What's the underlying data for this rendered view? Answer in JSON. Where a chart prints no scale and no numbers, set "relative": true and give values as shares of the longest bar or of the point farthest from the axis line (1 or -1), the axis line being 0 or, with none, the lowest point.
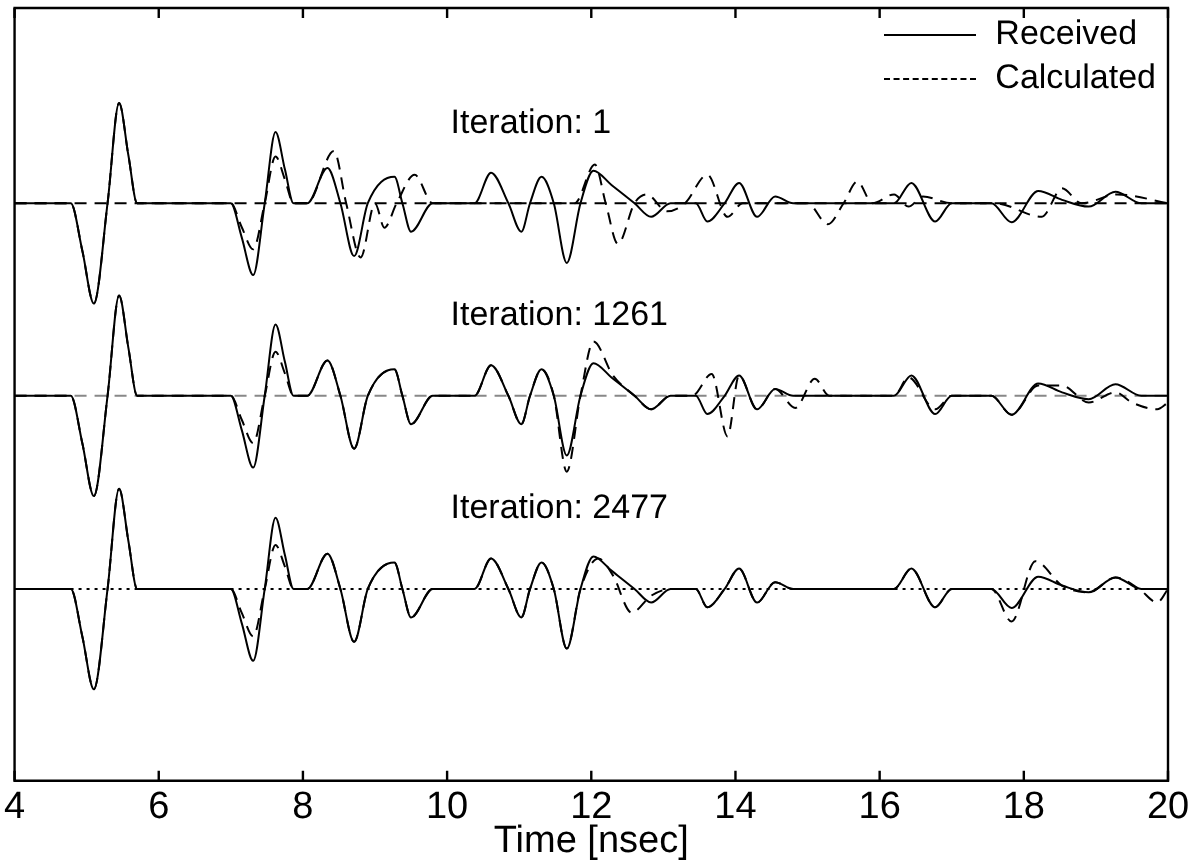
{
  "chart_data": {
    "type": "line",
    "relative": true,
    "xlabel": "Time [nsec]",
    "xlim": [
      4,
      20
    ],
    "xticks": [
      4,
      6,
      8,
      10,
      12,
      14,
      16,
      18,
      20
    ],
    "grid": false,
    "legend": "top right",
    "marker": "none",
    "series": [
      {
        "name": "Received",
        "color": "#000000",
        "line_style": "solid",
        "x": [
          4.0,
          4.78,
          4.94,
          5.1,
          5.29,
          5.45,
          5.58,
          5.7,
          7.0,
          7.15,
          7.31,
          7.47,
          7.62,
          7.75,
          7.87,
          8.06,
          8.34,
          8.52,
          8.71,
          8.9,
          9.27,
          9.38,
          9.5,
          9.8,
          10.38,
          10.61,
          10.85,
          11.03,
          11.15,
          11.31,
          11.48,
          11.66,
          11.85,
          12.03,
          12.28,
          12.6,
          12.83,
          13.1,
          13.45,
          13.61,
          13.85,
          14.05,
          14.3,
          14.55,
          14.8,
          15.3,
          15.7,
          16.2,
          16.44,
          16.77,
          17.0,
          17.55,
          17.83,
          18.2,
          18.53,
          18.9,
          19.27,
          19.63,
          20
        ],
        "values": [
          0.852,
          0.852,
          0.782,
          0.704,
          0.852,
          1.0,
          0.922,
          0.852,
          0.852,
          0.802,
          0.746,
          0.852,
          0.957,
          0.902,
          0.852,
          0.852,
          0.904,
          0.852,
          0.774,
          0.852,
          0.891,
          0.852,
          0.81,
          0.852,
          0.852,
          0.897,
          0.852,
          0.81,
          0.852,
          0.891,
          0.852,
          0.764,
          0.852,
          0.9,
          0.879,
          0.852,
          0.832,
          0.852,
          0.852,
          0.825,
          0.852,
          0.882,
          0.832,
          0.862,
          0.852,
          0.852,
          0.852,
          0.852,
          0.882,
          0.825,
          0.852,
          0.852,
          0.824,
          0.87,
          0.857,
          0.847,
          0.869,
          0.852,
          0.852
        ]
      },
      {
        "name": "Calculated",
        "color": "#000000",
        "line_style": "dashed",
        "x": [
          4.0,
          4.78,
          4.94,
          5.1,
          5.29,
          5.45,
          5.58,
          5.7,
          7.0,
          7.15,
          7.31,
          7.47,
          7.62,
          7.75,
          7.87,
          8.06,
          8.43,
          8.6,
          8.8,
          9.0,
          9.13,
          9.3,
          9.55,
          9.8,
          11.77,
          12.05,
          12.2,
          12.37,
          12.6,
          12.77,
          13.05,
          13.3,
          13.61,
          13.89,
          14.1,
          15.0,
          15.28,
          15.5,
          15.69,
          15.9,
          16.2,
          16.4,
          16.6,
          17.0,
          17.6,
          18.25,
          18.53,
          18.8,
          19.3,
          20
        ],
        "values": [
          0.852,
          0.852,
          0.782,
          0.704,
          0.852,
          1.0,
          0.922,
          0.852,
          0.852,
          0.817,
          0.784,
          0.852,
          0.921,
          0.887,
          0.852,
          0.852,
          0.929,
          0.852,
          0.772,
          0.852,
          0.816,
          0.852,
          0.894,
          0.852,
          0.852,
          0.909,
          0.852,
          0.792,
          0.852,
          0.865,
          0.84,
          0.852,
          0.894,
          0.832,
          0.852,
          0.852,
          0.821,
          0.852,
          0.884,
          0.852,
          0.865,
          0.847,
          0.862,
          0.852,
          0.852,
          0.832,
          0.874,
          0.852,
          0.865,
          0.852
        ]
      },
      {
        "color": "#000000",
        "line_style": "solid",
        "x": [
          4.0,
          4.78,
          4.94,
          5.1,
          5.29,
          5.45,
          5.58,
          5.7,
          7.0,
          7.15,
          7.31,
          7.47,
          7.62,
          7.75,
          7.87,
          8.06,
          8.34,
          8.52,
          8.71,
          8.9,
          9.27,
          9.38,
          9.5,
          9.8,
          10.38,
          10.61,
          10.85,
          11.03,
          11.15,
          11.31,
          11.48,
          11.66,
          11.85,
          12.03,
          12.28,
          12.6,
          12.83,
          13.1,
          13.45,
          13.61,
          13.85,
          14.05,
          14.3,
          14.55,
          14.8,
          15.3,
          15.7,
          16.2,
          16.44,
          16.77,
          17.0,
          17.55,
          17.83,
          18.2,
          18.53,
          18.9,
          19.27,
          19.63,
          20
        ],
        "values": [
          0.568,
          0.568,
          0.498,
          0.42,
          0.568,
          0.716,
          0.638,
          0.568,
          0.568,
          0.518,
          0.462,
          0.568,
          0.673,
          0.618,
          0.568,
          0.568,
          0.62,
          0.568,
          0.49,
          0.568,
          0.607,
          0.568,
          0.526,
          0.568,
          0.568,
          0.613,
          0.568,
          0.526,
          0.568,
          0.607,
          0.568,
          0.48,
          0.568,
          0.616,
          0.595,
          0.568,
          0.548,
          0.568,
          0.568,
          0.541,
          0.568,
          0.598,
          0.548,
          0.578,
          0.568,
          0.568,
          0.568,
          0.568,
          0.598,
          0.541,
          0.568,
          0.568,
          0.54,
          0.586,
          0.573,
          0.563,
          0.585,
          0.568,
          0.568
        ]
      },
      {
        "color": "#000000",
        "line_style": "dashed",
        "x": [
          4.0,
          4.78,
          4.94,
          5.1,
          5.29,
          5.45,
          5.58,
          5.7,
          7.0,
          7.15,
          7.31,
          7.47,
          7.62,
          7.75,
          7.87,
          8.06,
          8.34,
          8.52,
          8.71,
          8.9,
          9.27,
          9.38,
          9.5,
          9.8,
          10.38,
          10.61,
          10.85,
          11.03,
          11.15,
          11.31,
          11.48,
          11.66,
          11.85,
          12.03,
          12.3,
          12.6,
          12.83,
          13.1,
          13.4,
          13.67,
          13.89,
          14.05,
          14.3,
          14.55,
          14.83,
          15.1,
          15.3,
          16.2,
          16.4,
          16.77,
          17.0,
          17.55,
          17.83,
          18.2,
          18.53,
          18.9,
          19.27,
          19.5,
          19.85,
          20
        ],
        "values": [
          0.568,
          0.568,
          0.498,
          0.42,
          0.568,
          0.716,
          0.638,
          0.568,
          0.568,
          0.533,
          0.498,
          0.568,
          0.633,
          0.601,
          0.568,
          0.568,
          0.62,
          0.568,
          0.49,
          0.568,
          0.607,
          0.568,
          0.526,
          0.568,
          0.568,
          0.613,
          0.568,
          0.526,
          0.568,
          0.607,
          0.568,
          0.456,
          0.568,
          0.648,
          0.598,
          0.568,
          0.548,
          0.568,
          0.568,
          0.6,
          0.508,
          0.598,
          0.548,
          0.578,
          0.55,
          0.593,
          0.568,
          0.568,
          0.595,
          0.548,
          0.568,
          0.568,
          0.54,
          0.583,
          0.583,
          0.558,
          0.573,
          0.558,
          0.548,
          0.558
        ]
      },
      {
        "color": "#000000",
        "line_style": "solid",
        "x": [
          4.0,
          4.78,
          4.94,
          5.1,
          5.29,
          5.45,
          5.58,
          5.7,
          7.0,
          7.15,
          7.31,
          7.47,
          7.62,
          7.75,
          7.87,
          8.06,
          8.34,
          8.52,
          8.71,
          8.9,
          9.27,
          9.38,
          9.5,
          9.8,
          10.38,
          10.61,
          10.85,
          11.03,
          11.15,
          11.31,
          11.48,
          11.66,
          11.85,
          12.03,
          12.28,
          12.6,
          12.83,
          13.1,
          13.45,
          13.61,
          13.85,
          14.05,
          14.3,
          14.55,
          14.8,
          15.3,
          15.7,
          16.2,
          16.44,
          16.77,
          17.0,
          17.55,
          17.83,
          18.2,
          18.53,
          18.9,
          19.27,
          19.63,
          20
        ],
        "values": [
          0.283,
          0.283,
          0.213,
          0.135,
          0.283,
          0.431,
          0.353,
          0.283,
          0.283,
          0.233,
          0.177,
          0.283,
          0.388,
          0.333,
          0.283,
          0.283,
          0.335,
          0.283,
          0.205,
          0.283,
          0.322,
          0.283,
          0.241,
          0.283,
          0.283,
          0.328,
          0.283,
          0.241,
          0.283,
          0.322,
          0.283,
          0.195,
          0.283,
          0.331,
          0.31,
          0.283,
          0.263,
          0.283,
          0.283,
          0.256,
          0.283,
          0.313,
          0.263,
          0.293,
          0.283,
          0.283,
          0.283,
          0.283,
          0.313,
          0.256,
          0.283,
          0.283,
          0.255,
          0.301,
          0.288,
          0.278,
          0.3,
          0.283,
          0.283
        ]
      },
      {
        "color": "#000000",
        "line_style": "dashed",
        "x": [
          4.0,
          4.78,
          4.94,
          5.1,
          5.29,
          5.45,
          5.58,
          5.7,
          7.0,
          7.15,
          7.31,
          7.47,
          7.62,
          7.75,
          7.87,
          8.06,
          8.34,
          8.52,
          8.71,
          8.9,
          9.27,
          9.38,
          9.5,
          9.8,
          10.38,
          10.61,
          10.85,
          11.03,
          11.15,
          11.31,
          11.48,
          11.66,
          11.85,
          12.1,
          12.3,
          12.56,
          12.83,
          13.1,
          13.45,
          13.61,
          13.85,
          14.05,
          14.3,
          14.55,
          14.8,
          15.7,
          16.2,
          16.44,
          16.77,
          17.0,
          17.55,
          17.83,
          18.16,
          18.53,
          18.9,
          19.27,
          19.6,
          19.85,
          20
        ],
        "values": [
          0.283,
          0.283,
          0.213,
          0.135,
          0.283,
          0.431,
          0.353,
          0.283,
          0.283,
          0.248,
          0.213,
          0.283,
          0.348,
          0.316,
          0.283,
          0.283,
          0.335,
          0.283,
          0.205,
          0.283,
          0.322,
          0.283,
          0.241,
          0.283,
          0.283,
          0.328,
          0.283,
          0.241,
          0.283,
          0.322,
          0.283,
          0.195,
          0.283,
          0.328,
          0.303,
          0.248,
          0.273,
          0.283,
          0.283,
          0.256,
          0.283,
          0.313,
          0.263,
          0.293,
          0.283,
          0.283,
          0.283,
          0.313,
          0.256,
          0.283,
          0.283,
          0.235,
          0.324,
          0.288,
          0.278,
          0.3,
          0.283,
          0.263,
          0.283
        ]
      }
    ],
    "ref_lines": [
      {
        "axis": "y",
        "value": 0.852,
        "color": "#000000",
        "line_style": "dashed"
      },
      {
        "axis": "y",
        "value": 0.568,
        "color": "#888888",
        "line_style": "dashed"
      },
      {
        "axis": "y",
        "value": 0.283,
        "color": "#000000",
        "line_style": "dotted"
      }
    ],
    "annotations": [
      "Iteration: 1",
      "Iteration: 1261",
      "Iteration: 2477"
    ]
  }
}
